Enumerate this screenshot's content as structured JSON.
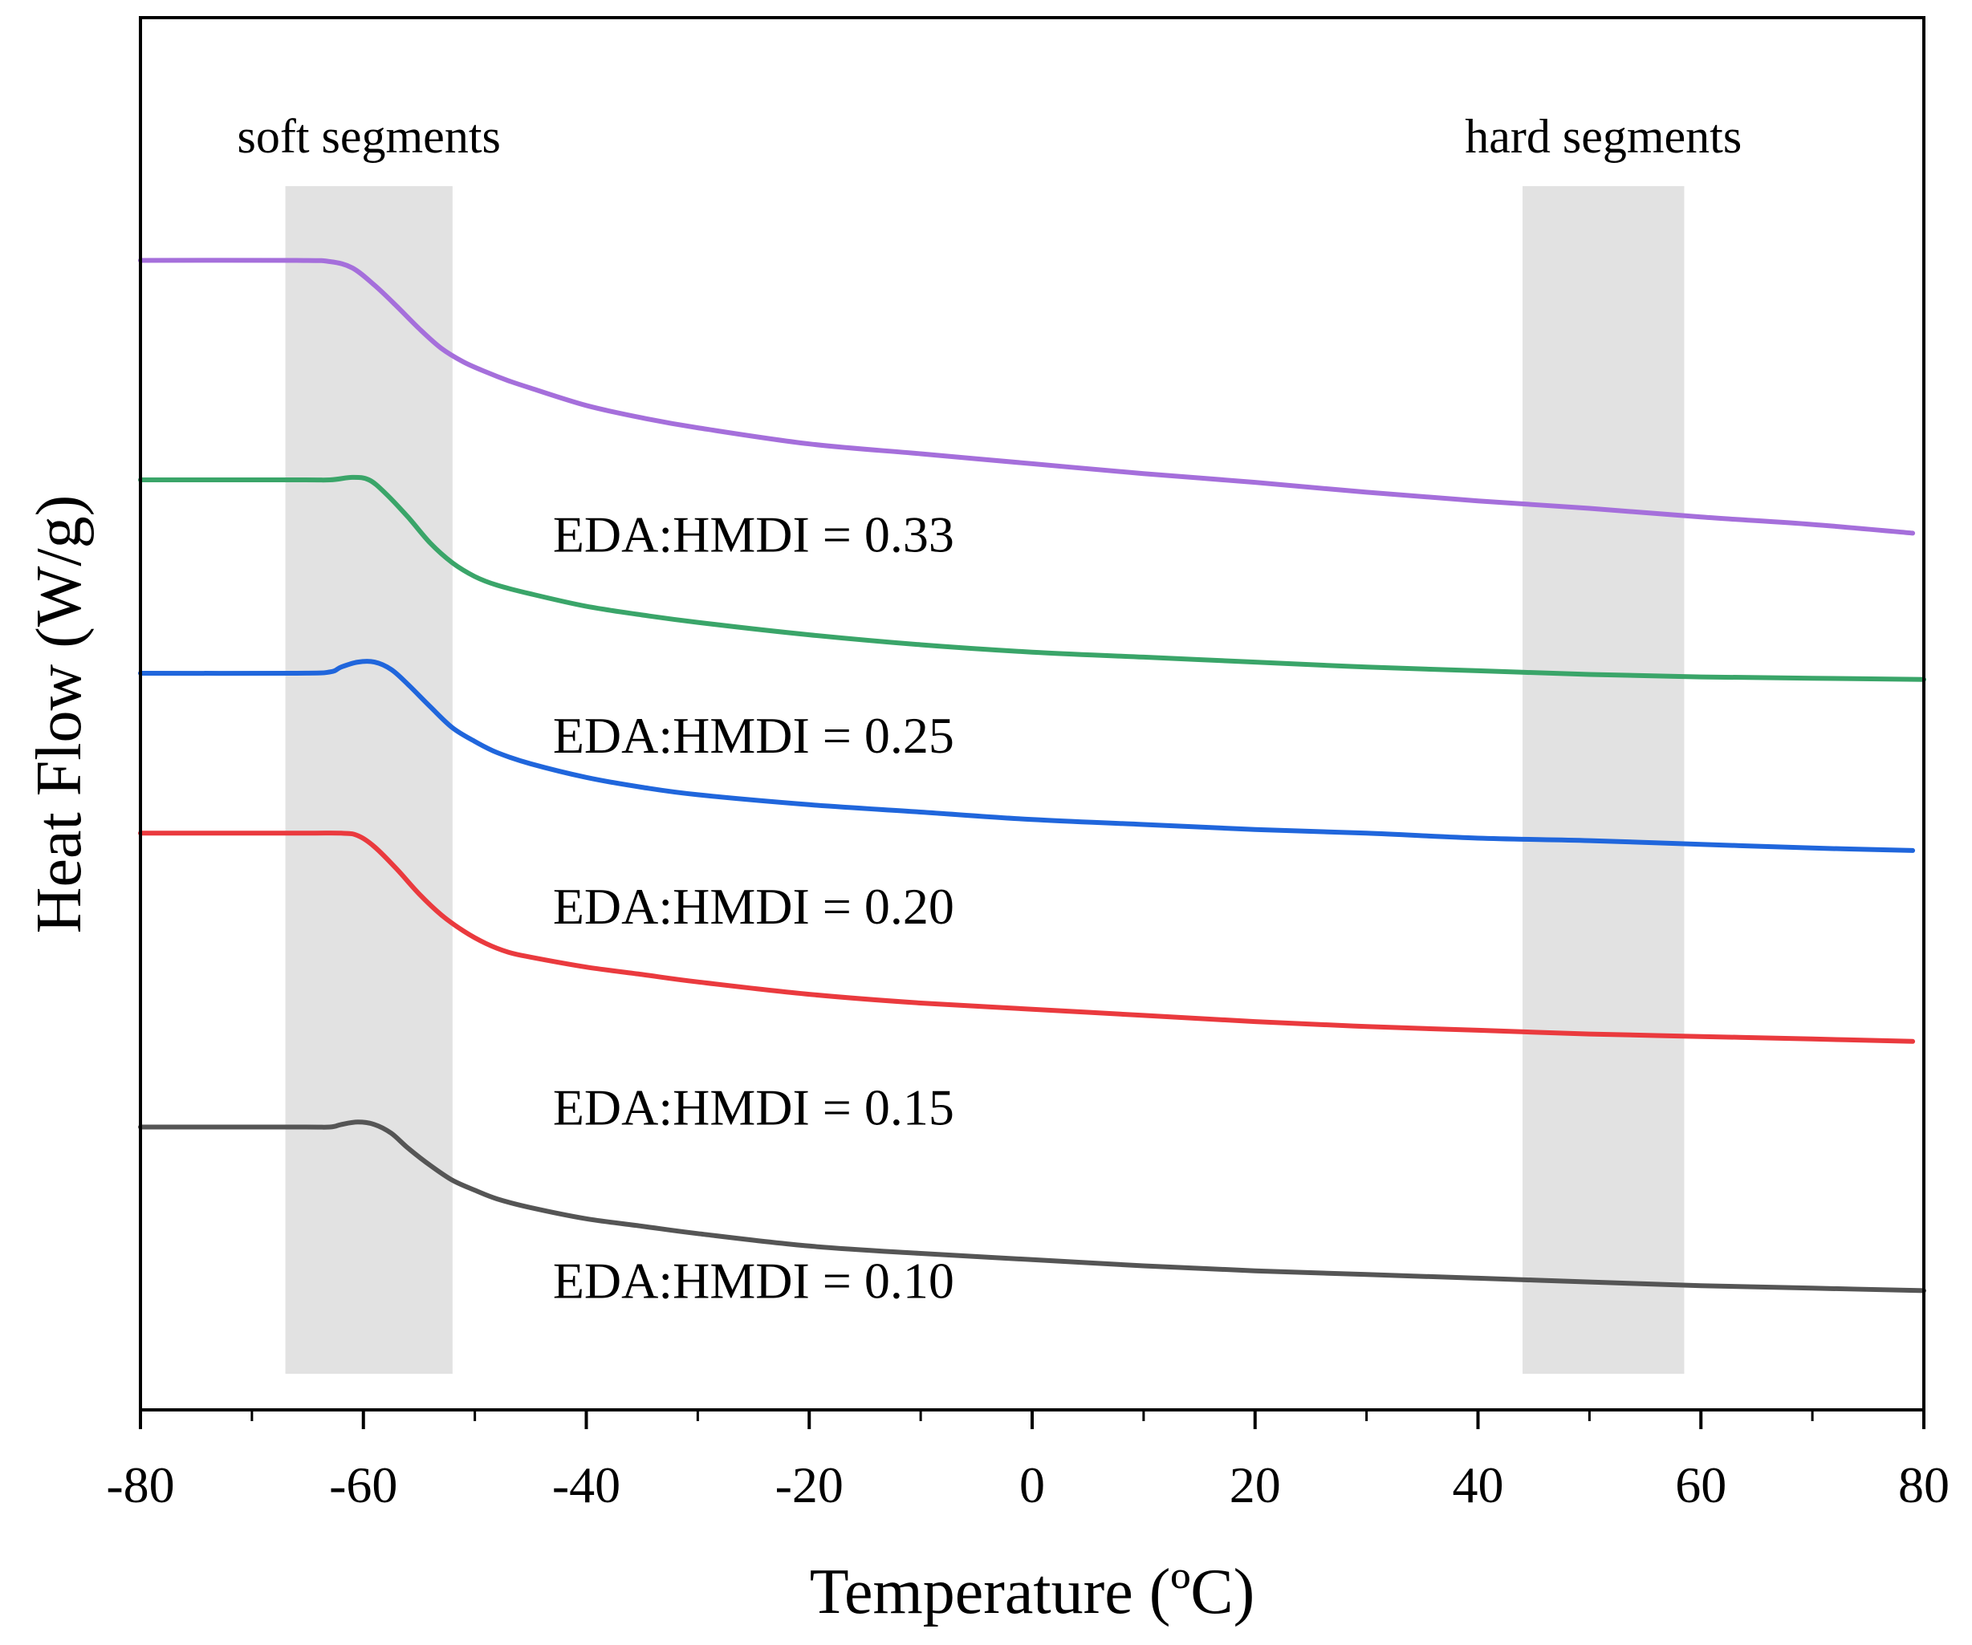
{
  "chart_data": {
    "type": "line",
    "title": "",
    "xlabel": "Temperature (ºC)",
    "ylabel": "Heat Flow (W/g)",
    "xlim": [
      -80,
      80
    ],
    "ylim": [
      0,
      100
    ],
    "x_ticks": [
      "-80",
      "-60",
      "-40",
      "-20",
      "0",
      "20",
      "40",
      "60",
      "80"
    ],
    "x_tick_values": [
      -80,
      -60,
      -40,
      -20,
      0,
      20,
      40,
      60,
      80
    ],
    "y_ticks_shown": false,
    "shaded_regions": [
      {
        "label": "soft segments",
        "x_from": -67,
        "x_to": -52,
        "color": "#e2e2e2"
      },
      {
        "label": "hard segments",
        "x_from": 44,
        "x_to": 58.5,
        "color": "#e2e2e2"
      }
    ],
    "series": [
      {
        "name": "EDA:HMDI = 0.33",
        "color": "#a56fdb",
        "label_at": [
          -43,
          66.5
        ],
        "points": [
          [
            -80,
            90.0
          ],
          [
            -66,
            90.0
          ],
          [
            -63,
            89.9
          ],
          [
            -61,
            89.4
          ],
          [
            -59,
            88.0
          ],
          [
            -57,
            86.3
          ],
          [
            -55,
            84.5
          ],
          [
            -53,
            82.9
          ],
          [
            -51,
            81.8
          ],
          [
            -49,
            81.0
          ],
          [
            -47,
            80.3
          ],
          [
            -45,
            79.7
          ],
          [
            -40,
            78.3
          ],
          [
            -35,
            77.3
          ],
          [
            -30,
            76.5
          ],
          [
            -20,
            75.2
          ],
          [
            -10,
            74.4
          ],
          [
            0,
            73.6
          ],
          [
            10,
            72.8
          ],
          [
            20,
            72.1
          ],
          [
            30,
            71.3
          ],
          [
            40,
            70.6
          ],
          [
            50,
            70.0
          ],
          [
            60,
            69.3
          ],
          [
            70,
            68.7
          ],
          [
            79,
            68.0
          ]
        ]
      },
      {
        "name": "EDA:HMDI = 0.25",
        "color": "#3aa569",
        "label_at": [
          -43,
          50.3
        ],
        "points": [
          [
            -80,
            72.3
          ],
          [
            -66,
            72.3
          ],
          [
            -63,
            72.3
          ],
          [
            -61,
            72.5
          ],
          [
            -59.5,
            72.3
          ],
          [
            -58,
            71.2
          ],
          [
            -56,
            69.3
          ],
          [
            -54,
            67.2
          ],
          [
            -52,
            65.6
          ],
          [
            -50,
            64.5
          ],
          [
            -48,
            63.8
          ],
          [
            -45,
            63.1
          ],
          [
            -40,
            62.1
          ],
          [
            -35,
            61.4
          ],
          [
            -30,
            60.8
          ],
          [
            -20,
            59.8
          ],
          [
            -10,
            59.0
          ],
          [
            0,
            58.4
          ],
          [
            10,
            58.0
          ],
          [
            20,
            57.6
          ],
          [
            30,
            57.2
          ],
          [
            40,
            56.9
          ],
          [
            50,
            56.6
          ],
          [
            60,
            56.4
          ],
          [
            70,
            56.3
          ],
          [
            80,
            56.2
          ]
        ]
      },
      {
        "name": "EDA:HMDI = 0.20",
        "color": "#2066dc",
        "label_at": [
          -43,
          36.5
        ],
        "points": [
          [
            -80,
            56.7
          ],
          [
            -66,
            56.7
          ],
          [
            -63,
            56.8
          ],
          [
            -62,
            57.2
          ],
          [
            -60.5,
            57.6
          ],
          [
            -59,
            57.6
          ],
          [
            -57.5,
            57.0
          ],
          [
            -56,
            55.8
          ],
          [
            -54,
            54.0
          ],
          [
            -52,
            52.3
          ],
          [
            -50,
            51.2
          ],
          [
            -48,
            50.3
          ],
          [
            -45,
            49.4
          ],
          [
            -40,
            48.3
          ],
          [
            -35,
            47.5
          ],
          [
            -30,
            46.9
          ],
          [
            -20,
            46.1
          ],
          [
            -10,
            45.5
          ],
          [
            0,
            44.9
          ],
          [
            10,
            44.5
          ],
          [
            20,
            44.1
          ],
          [
            30,
            43.8
          ],
          [
            40,
            43.4
          ],
          [
            50,
            43.2
          ],
          [
            60,
            42.9
          ],
          [
            70,
            42.6
          ],
          [
            79,
            42.4
          ]
        ]
      },
      {
        "name": "EDA:HMDI = 0.15",
        "color": "#ea3a3e",
        "label_at": [
          -43,
          20.3
        ],
        "points": [
          [
            -80,
            43.8
          ],
          [
            -66,
            43.8
          ],
          [
            -62,
            43.8
          ],
          [
            -60.5,
            43.6
          ],
          [
            -59,
            42.7
          ],
          [
            -57,
            40.9
          ],
          [
            -55,
            38.9
          ],
          [
            -53,
            37.2
          ],
          [
            -51,
            35.9
          ],
          [
            -49,
            34.9
          ],
          [
            -47,
            34.2
          ],
          [
            -45,
            33.8
          ],
          [
            -40,
            33.0
          ],
          [
            -35,
            32.4
          ],
          [
            -30,
            31.8
          ],
          [
            -20,
            30.8
          ],
          [
            -10,
            30.1
          ],
          [
            0,
            29.6
          ],
          [
            10,
            29.1
          ],
          [
            20,
            28.6
          ],
          [
            30,
            28.2
          ],
          [
            40,
            27.9
          ],
          [
            50,
            27.6
          ],
          [
            60,
            27.4
          ],
          [
            70,
            27.2
          ],
          [
            79,
            27.0
          ]
        ]
      },
      {
        "name": "EDA:HMDI = 0.10",
        "color": "#555555",
        "label_at": [
          -43,
          6.3
        ],
        "points": [
          [
            -80,
            20.1
          ],
          [
            -66,
            20.1
          ],
          [
            -63,
            20.1
          ],
          [
            -62,
            20.3
          ],
          [
            -60.5,
            20.5
          ],
          [
            -59,
            20.3
          ],
          [
            -57.5,
            19.6
          ],
          [
            -56,
            18.4
          ],
          [
            -54,
            17.0
          ],
          [
            -52,
            15.8
          ],
          [
            -50,
            15.0
          ],
          [
            -48,
            14.3
          ],
          [
            -45,
            13.6
          ],
          [
            -40,
            12.7
          ],
          [
            -35,
            12.1
          ],
          [
            -30,
            11.5
          ],
          [
            -20,
            10.5
          ],
          [
            -10,
            9.9
          ],
          [
            0,
            9.4
          ],
          [
            10,
            8.9
          ],
          [
            20,
            8.5
          ],
          [
            30,
            8.2
          ],
          [
            40,
            7.9
          ],
          [
            50,
            7.6
          ],
          [
            60,
            7.3
          ],
          [
            70,
            7.1
          ],
          [
            80,
            6.9
          ]
        ]
      }
    ]
  }
}
